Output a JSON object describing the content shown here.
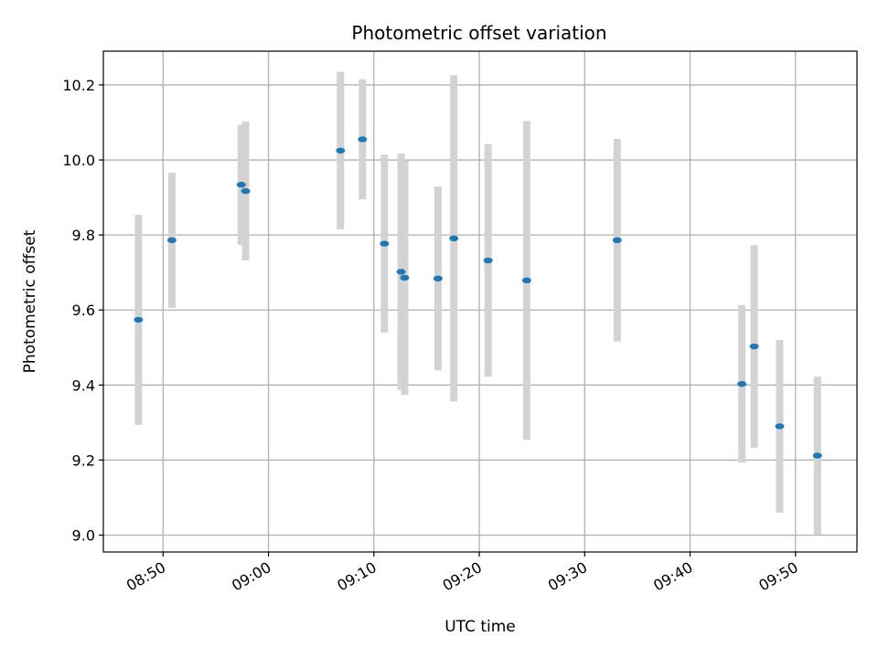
{
  "chart_data": {
    "type": "scatter",
    "title": "Photometric offset variation",
    "xlabel": "UTC time",
    "ylabel": "Photometric offset",
    "x_tick_labels": [
      "08:50",
      "09:00",
      "09:10",
      "09:20",
      "09:30",
      "09:40",
      "09:50"
    ],
    "y_tick_labels": [
      "9.0",
      "9.2",
      "9.4",
      "9.6",
      "9.8",
      "10.0",
      "10.2"
    ],
    "x_ticks": [
      "08:50",
      "09:00",
      "09:10",
      "09:20",
      "09:30",
      "09:40",
      "09:50"
    ],
    "y_ticks": [
      9.0,
      9.2,
      9.4,
      9.6,
      9.8,
      10.0,
      10.2
    ],
    "xlim": [
      "08:44:20",
      "09:55:50"
    ],
    "ylim": [
      8.955,
      10.29
    ],
    "grid": true,
    "colors": {
      "point": "#1f77b4",
      "error_bar": "#d3d3d3",
      "grid": "#b0b0b0"
    },
    "points": [
      {
        "x": "08:47:40",
        "y": 9.574,
        "yerr": 0.28
      },
      {
        "x": "08:50:50",
        "y": 9.786,
        "yerr": 0.18
      },
      {
        "x": "08:57:25",
        "y": 9.934,
        "yerr": 0.16
      },
      {
        "x": "08:57:50",
        "y": 9.917,
        "yerr": 0.185
      },
      {
        "x": "09:06:50",
        "y": 10.025,
        "yerr": 0.21
      },
      {
        "x": "09:08:55",
        "y": 10.055,
        "yerr": 0.16
      },
      {
        "x": "09:11:00",
        "y": 9.777,
        "yerr": 0.237
      },
      {
        "x": "09:12:35",
        "y": 9.702,
        "yerr": 0.315
      },
      {
        "x": "09:12:55",
        "y": 9.686,
        "yerr": 0.312
      },
      {
        "x": "09:16:05",
        "y": 9.684,
        "yerr": 0.245
      },
      {
        "x": "09:17:35",
        "y": 9.791,
        "yerr": 0.435
      },
      {
        "x": "09:20:50",
        "y": 9.732,
        "yerr": 0.31
      },
      {
        "x": "09:24:30",
        "y": 9.679,
        "yerr": 0.425
      },
      {
        "x": "09:33:05",
        "y": 9.786,
        "yerr": 0.27
      },
      {
        "x": "09:44:55",
        "y": 9.403,
        "yerr": 0.21
      },
      {
        "x": "09:46:05",
        "y": 9.503,
        "yerr": 0.27
      },
      {
        "x": "09:48:30",
        "y": 9.29,
        "yerr": 0.23
      },
      {
        "x": "09:52:05",
        "y": 9.212,
        "yerr": 0.21
      }
    ]
  }
}
